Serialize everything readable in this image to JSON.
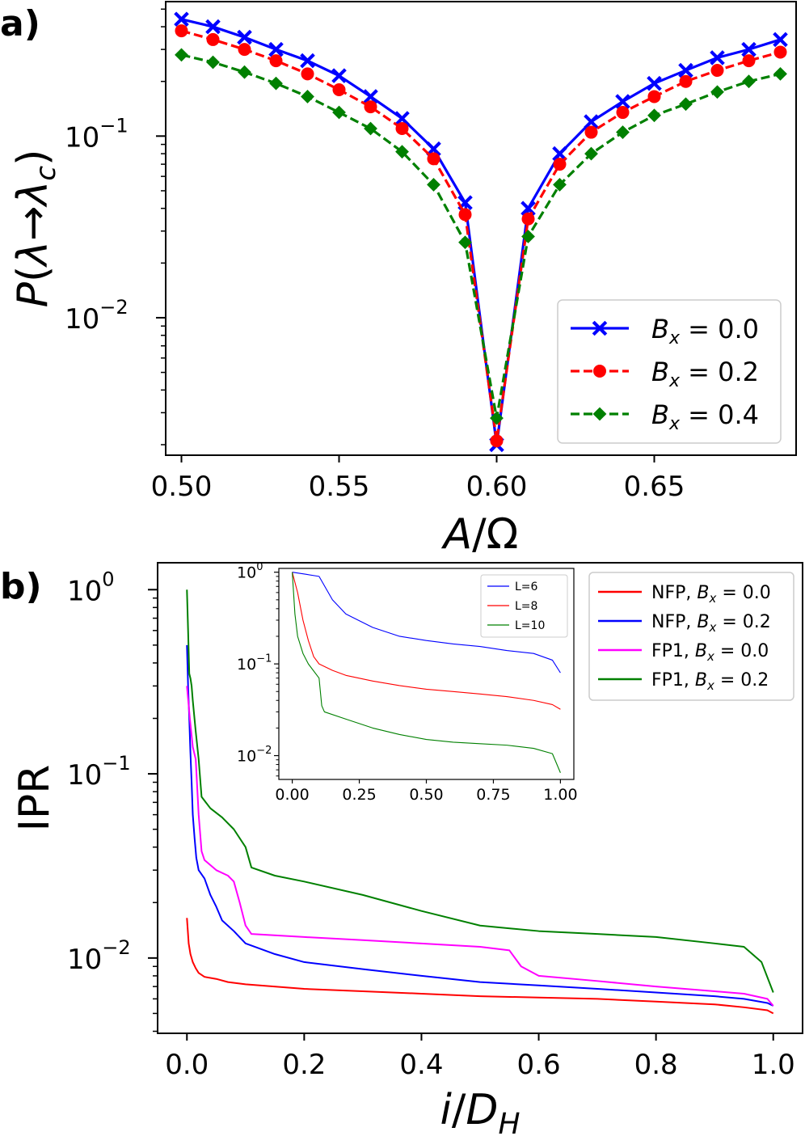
{
  "panels": [
    {
      "label": "a)"
    },
    {
      "label": "b)"
    }
  ],
  "chart_data": [
    {
      "type": "line",
      "ylabel": "P(λ→λc)",
      "xlabel": "A/Ω",
      "yscale": "log",
      "xlim": [
        0.495,
        0.695
      ],
      "ylim": [
        0.00175,
        0.55
      ],
      "xticks": [
        0.5,
        0.55,
        0.6,
        0.65
      ],
      "xtick_labels": [
        "0.50",
        "0.55",
        "0.60",
        "0.65"
      ],
      "yticks": [
        0.1,
        0.01
      ],
      "ytick_labels": [
        {
          "base": "10",
          "exp": "−1"
        },
        {
          "base": "10",
          "exp": "−2"
        }
      ],
      "legend_position": "lower-right",
      "x": [
        0.5,
        0.51,
        0.52,
        0.53,
        0.54,
        0.55,
        0.56,
        0.57,
        0.58,
        0.59,
        0.6,
        0.61,
        0.62,
        0.63,
        0.64,
        0.65,
        0.66,
        0.67,
        0.68,
        0.69
      ],
      "series": [
        {
          "name": "Bx = 0.0",
          "legend_main": "B",
          "legend_sub": "x",
          "legend_value": " = 0.0",
          "color": "#0000ff",
          "marker": "x",
          "dash": "solid",
          "values": [
            0.44,
            0.4,
            0.35,
            0.3,
            0.26,
            0.215,
            0.165,
            0.125,
            0.085,
            0.043,
            0.002,
            0.04,
            0.08,
            0.12,
            0.155,
            0.195,
            0.23,
            0.27,
            0.3,
            0.34
          ]
        },
        {
          "name": "Bx = 0.2",
          "legend_main": "B",
          "legend_sub": "x",
          "legend_value": " = 0.2",
          "color": "#ff0000",
          "marker": "o",
          "dash": "dashed",
          "values": [
            0.38,
            0.34,
            0.3,
            0.26,
            0.22,
            0.18,
            0.145,
            0.11,
            0.075,
            0.037,
            0.0021,
            0.035,
            0.07,
            0.105,
            0.135,
            0.165,
            0.2,
            0.23,
            0.26,
            0.29
          ]
        },
        {
          "name": "Bx = 0.4",
          "legend_main": "B",
          "legend_sub": "x",
          "legend_value": " = 0.4",
          "color": "#008000",
          "marker": "D",
          "dash": "dashed",
          "values": [
            0.28,
            0.255,
            0.225,
            0.195,
            0.165,
            0.135,
            0.11,
            0.082,
            0.054,
            0.026,
            0.0028,
            0.028,
            0.054,
            0.08,
            0.105,
            0.13,
            0.15,
            0.175,
            0.2,
            0.22
          ]
        }
      ]
    },
    {
      "type": "line",
      "ylabel": "IPR",
      "xlabel": "i/DH",
      "yscale": "log",
      "xlim": [
        -0.05,
        1.05
      ],
      "ylim": [
        0.0039,
        1.4
      ],
      "xticks": [
        0.0,
        0.2,
        0.4,
        0.6,
        0.8,
        1.0
      ],
      "xtick_labels": [
        "0.0",
        "0.2",
        "0.4",
        "0.6",
        "0.8",
        "1.0"
      ],
      "yticks": [
        1,
        0.1,
        0.01
      ],
      "ytick_labels": [
        {
          "base": "10",
          "exp": "0"
        },
        {
          "base": "10",
          "exp": "−1"
        },
        {
          "base": "10",
          "exp": "−2"
        }
      ],
      "legend_position": "top-right",
      "series": [
        {
          "legend_prefix": "NFP, ",
          "legend_main": "B",
          "legend_sub": "x",
          "legend_value": " = 0.0",
          "color": "#ff0000",
          "x": [
            0.0,
            0.003,
            0.006,
            0.01,
            0.015,
            0.02,
            0.03,
            0.05,
            0.07,
            0.1,
            0.2,
            0.3,
            0.4,
            0.5,
            0.6,
            0.7,
            0.8,
            0.9,
            0.95,
            0.99,
            1.0
          ],
          "values": [
            0.0165,
            0.012,
            0.0105,
            0.0095,
            0.0088,
            0.0083,
            0.0079,
            0.0077,
            0.0074,
            0.0072,
            0.0068,
            0.0066,
            0.0064,
            0.0062,
            0.0061,
            0.006,
            0.0058,
            0.0056,
            0.0054,
            0.0052,
            0.005
          ]
        },
        {
          "legend_prefix": "NFP, ",
          "legend_main": "B",
          "legend_sub": "x",
          "legend_value": " = 0.2",
          "color": "#0000ff",
          "x": [
            0.0,
            0.002,
            0.004,
            0.006,
            0.008,
            0.01,
            0.013,
            0.016,
            0.02,
            0.03,
            0.04,
            0.05,
            0.06,
            0.08,
            0.1,
            0.15,
            0.2,
            0.3,
            0.4,
            0.5,
            0.6,
            0.7,
            0.8,
            0.9,
            0.95,
            0.99,
            1.0
          ],
          "values": [
            0.5,
            0.3,
            0.2,
            0.13,
            0.09,
            0.06,
            0.045,
            0.035,
            0.03,
            0.027,
            0.022,
            0.019,
            0.016,
            0.014,
            0.012,
            0.0105,
            0.0095,
            0.0087,
            0.008,
            0.0074,
            0.0071,
            0.0068,
            0.0065,
            0.0062,
            0.006,
            0.0057,
            0.0055
          ]
        },
        {
          "legend_prefix": "FP1, ",
          "legend_main": "B",
          "legend_sub": "x",
          "legend_value": " = 0.0",
          "color": "#ff00ff",
          "x": [
            0.0,
            0.005,
            0.01,
            0.015,
            0.02,
            0.025,
            0.03,
            0.05,
            0.07,
            0.08,
            0.09,
            0.1,
            0.11,
            0.2,
            0.3,
            0.4,
            0.5,
            0.55,
            0.57,
            0.6,
            0.7,
            0.8,
            0.9,
            0.95,
            0.99,
            1.0
          ],
          "values": [
            0.3,
            0.2,
            0.14,
            0.12,
            0.06,
            0.038,
            0.034,
            0.03,
            0.028,
            0.026,
            0.02,
            0.015,
            0.0135,
            0.013,
            0.0125,
            0.012,
            0.0115,
            0.011,
            0.009,
            0.008,
            0.0075,
            0.007,
            0.0066,
            0.0064,
            0.006,
            0.0055
          ]
        },
        {
          "legend_prefix": "FP1, ",
          "legend_main": "B",
          "legend_sub": "x",
          "legend_value": " = 0.2",
          "color": "#008000",
          "x": [
            0.0,
            0.002,
            0.004,
            0.006,
            0.008,
            0.01,
            0.015,
            0.02,
            0.025,
            0.04,
            0.06,
            0.08,
            0.1,
            0.11,
            0.15,
            0.2,
            0.3,
            0.4,
            0.5,
            0.6,
            0.7,
            0.8,
            0.9,
            0.95,
            0.98,
            1.0
          ],
          "values": [
            1.0,
            0.6,
            0.35,
            0.33,
            0.3,
            0.25,
            0.17,
            0.12,
            0.075,
            0.065,
            0.058,
            0.05,
            0.04,
            0.031,
            0.028,
            0.026,
            0.022,
            0.018,
            0.015,
            0.014,
            0.0135,
            0.013,
            0.012,
            0.0115,
            0.0095,
            0.0065
          ]
        }
      ]
    },
    {
      "type": "line",
      "role": "inset",
      "yscale": "log",
      "xlim": [
        -0.05,
        1.05
      ],
      "ylim": [
        0.0055,
        1.1
      ],
      "xticks": [
        0.0,
        0.25,
        0.5,
        0.75,
        1.0
      ],
      "xtick_labels": [
        "0.00",
        "0.25",
        "0.50",
        "0.75",
        "1.00"
      ],
      "yticks": [
        1,
        0.1,
        0.01
      ],
      "ytick_labels": [
        {
          "base": "10",
          "exp": "0"
        },
        {
          "base": "10",
          "exp": "−1"
        },
        {
          "base": "10",
          "exp": "−2"
        }
      ],
      "legend_position": "top-right",
      "series": [
        {
          "name": "L=6",
          "color": "#0000ff",
          "x": [
            0.0,
            0.05,
            0.1,
            0.15,
            0.2,
            0.3,
            0.4,
            0.5,
            0.6,
            0.7,
            0.8,
            0.9,
            0.97,
            1.0
          ],
          "values": [
            1.0,
            0.95,
            0.9,
            0.5,
            0.35,
            0.25,
            0.2,
            0.18,
            0.165,
            0.155,
            0.14,
            0.13,
            0.11,
            0.08
          ]
        },
        {
          "name": "L=8",
          "color": "#ff0000",
          "x": [
            0.0,
            0.02,
            0.04,
            0.06,
            0.08,
            0.1,
            0.15,
            0.2,
            0.3,
            0.4,
            0.5,
            0.6,
            0.7,
            0.8,
            0.9,
            0.97,
            1.0
          ],
          "values": [
            1.0,
            0.6,
            0.3,
            0.18,
            0.12,
            0.1,
            0.085,
            0.075,
            0.065,
            0.058,
            0.053,
            0.05,
            0.047,
            0.044,
            0.04,
            0.036,
            0.032
          ]
        },
        {
          "name": "L=10",
          "color": "#008000",
          "x": [
            0.0,
            0.01,
            0.02,
            0.04,
            0.06,
            0.1,
            0.11,
            0.12,
            0.2,
            0.3,
            0.4,
            0.5,
            0.6,
            0.7,
            0.8,
            0.9,
            0.97,
            1.0
          ],
          "values": [
            1.0,
            0.35,
            0.2,
            0.13,
            0.1,
            0.07,
            0.035,
            0.03,
            0.025,
            0.02,
            0.017,
            0.015,
            0.014,
            0.0135,
            0.013,
            0.012,
            0.0105,
            0.0065
          ]
        }
      ]
    }
  ]
}
